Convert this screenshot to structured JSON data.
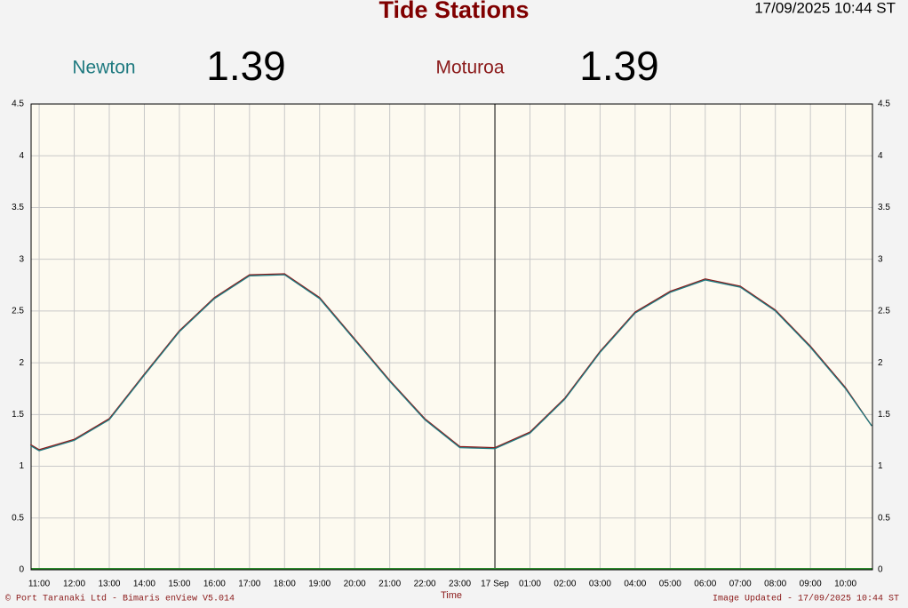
{
  "chart_data": {
    "type": "line",
    "title": "Tide Stations",
    "timestamp": "17/09/2025 10:44 ST",
    "x_label": "Time",
    "footer_left": "© Port Taranaki Ltd - Bimaris enView V5.014",
    "footer_right": "Image Updated - 17/09/2025 10:44 ST",
    "x": [
      10.75,
      11,
      12,
      13,
      14,
      15,
      16,
      17,
      18,
      19,
      20,
      21,
      22,
      23,
      24,
      25,
      26,
      27,
      28,
      29,
      30,
      31,
      32,
      33,
      34,
      34.75
    ],
    "series": [
      {
        "name": "Moturoa",
        "color": "#8b1a1a",
        "latest": 1.39,
        "values": [
          1.21,
          1.16,
          1.26,
          1.46,
          1.89,
          2.31,
          2.63,
          2.85,
          2.86,
          2.63,
          2.23,
          1.83,
          1.46,
          1.19,
          1.18,
          1.33,
          1.66,
          2.11,
          2.49,
          2.69,
          2.81,
          2.74,
          2.51,
          2.16,
          1.76,
          1.39
        ]
      },
      {
        "name": "Newton",
        "color": "#1f7a80",
        "latest": 1.39,
        "values": [
          1.2,
          1.15,
          1.25,
          1.45,
          1.88,
          2.3,
          2.62,
          2.84,
          2.85,
          2.62,
          2.22,
          1.82,
          1.45,
          1.18,
          1.17,
          1.32,
          1.65,
          2.1,
          2.48,
          2.68,
          2.8,
          2.73,
          2.5,
          2.15,
          1.75,
          1.39
        ]
      }
    ],
    "xlim": [
      10.77,
      34.77
    ],
    "xticks": [
      {
        "value": 11,
        "label": "11:00"
      },
      {
        "value": 12,
        "label": "12:00"
      },
      {
        "value": 13,
        "label": "13:00"
      },
      {
        "value": 14,
        "label": "14:00"
      },
      {
        "value": 15,
        "label": "15:00"
      },
      {
        "value": 16,
        "label": "16:00"
      },
      {
        "value": 17,
        "label": "17:00"
      },
      {
        "value": 18,
        "label": "18:00"
      },
      {
        "value": 19,
        "label": "19:00"
      },
      {
        "value": 20,
        "label": "20:00"
      },
      {
        "value": 21,
        "label": "21:00"
      },
      {
        "value": 22,
        "label": "22:00"
      },
      {
        "value": 23,
        "label": "23:00"
      },
      {
        "value": 24,
        "label": "17 Sep"
      },
      {
        "value": 25,
        "label": "01:00"
      },
      {
        "value": 26,
        "label": "02:00"
      },
      {
        "value": 27,
        "label": "03:00"
      },
      {
        "value": 28,
        "label": "04:00"
      },
      {
        "value": 29,
        "label": "05:00"
      },
      {
        "value": 30,
        "label": "06:00"
      },
      {
        "value": 31,
        "label": "07:00"
      },
      {
        "value": 32,
        "label": "08:00"
      },
      {
        "value": 33,
        "label": "09:00"
      },
      {
        "value": 34,
        "label": "10:00"
      }
    ],
    "ylim": [
      0,
      4.5
    ],
    "yticks": [
      0,
      0.5,
      1,
      1.5,
      2,
      2.5,
      3,
      3.5,
      4,
      4.5
    ],
    "day_marker": 24,
    "grid": true
  }
}
